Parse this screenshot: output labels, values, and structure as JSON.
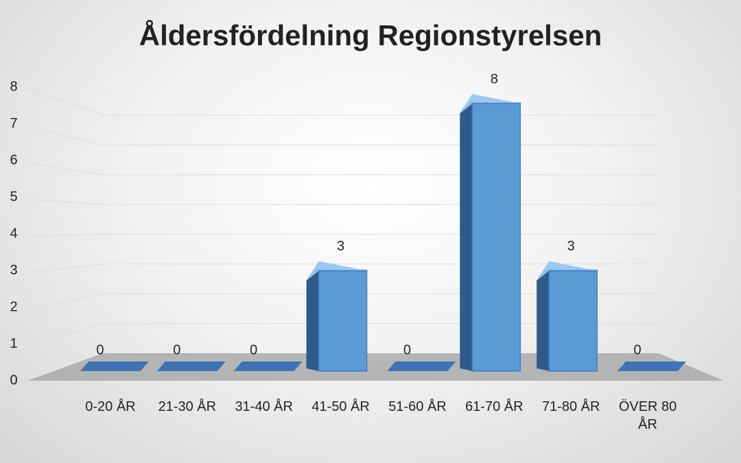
{
  "chart_data": {
    "type": "bar3d",
    "title": "Åldersfördelning Regionstyrelsen",
    "categories": [
      "0-20 ÅR",
      "21-30 ÅR",
      "31-40 ÅR",
      "41-50 ÅR",
      "51-60 ÅR",
      "61-70 ÅR",
      "71-80 ÅR",
      "ÖVER 80 ÅR"
    ],
    "values": [
      0,
      0,
      0,
      3,
      0,
      8,
      3,
      0
    ],
    "color": "#5b9bd5",
    "ylim": [
      0,
      8
    ],
    "yticks": [
      0,
      1,
      2,
      3,
      4,
      5,
      6,
      7,
      8
    ],
    "grid": true
  }
}
